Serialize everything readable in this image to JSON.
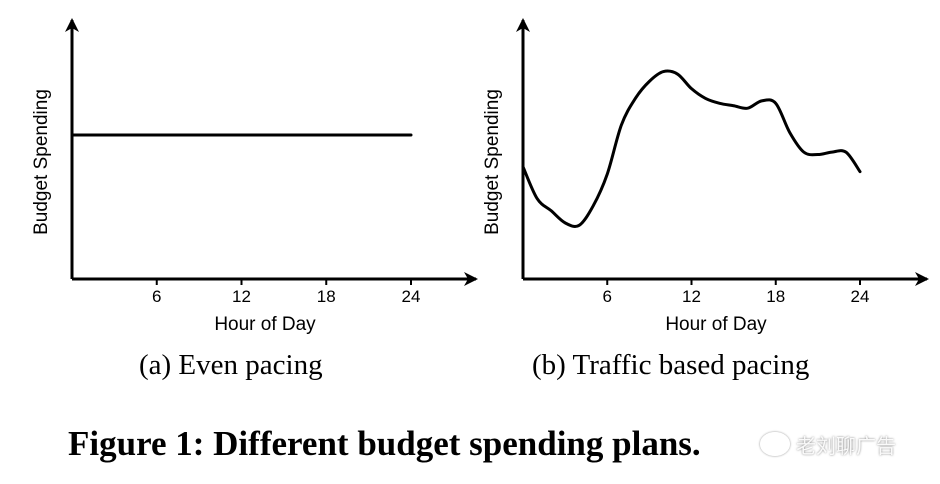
{
  "chart_data": [
    {
      "type": "line",
      "panel": "a",
      "caption": "(a) Even pacing",
      "xlabel": "Hour of Day",
      "ylabel": "Budget Spending",
      "xlim": [
        0,
        24
      ],
      "ylim": [
        0,
        1
      ],
      "xticks": [
        "6",
        "12",
        "18",
        "24"
      ],
      "grid": false,
      "series": [
        {
          "x": [
            0,
            24
          ],
          "y": [
            0.59,
            0.59
          ]
        }
      ]
    },
    {
      "type": "line",
      "panel": "b",
      "caption": "(b) Traffic based pacing",
      "xlabel": "Hour of Day",
      "ylabel": "Budget Spending",
      "xlim": [
        0,
        24
      ],
      "ylim": [
        0,
        1
      ],
      "xticks": [
        "6",
        "12",
        "18",
        "24"
      ],
      "grid": false,
      "series": [
        {
          "x": [
            0,
            1,
            2,
            3,
            4,
            5,
            6,
            7,
            8,
            9,
            10,
            11,
            12,
            13,
            14,
            15,
            16,
            17,
            18,
            19,
            20,
            21,
            22,
            23,
            24
          ],
          "y": [
            0.46,
            0.33,
            0.28,
            0.23,
            0.22,
            0.3,
            0.43,
            0.63,
            0.74,
            0.81,
            0.85,
            0.84,
            0.78,
            0.74,
            0.72,
            0.71,
            0.7,
            0.73,
            0.72,
            0.6,
            0.52,
            0.51,
            0.52,
            0.52,
            0.44
          ]
        }
      ]
    }
  ],
  "figure_title": "Figure 1: Different budget spending plans.",
  "watermark": "老刘聊广告"
}
